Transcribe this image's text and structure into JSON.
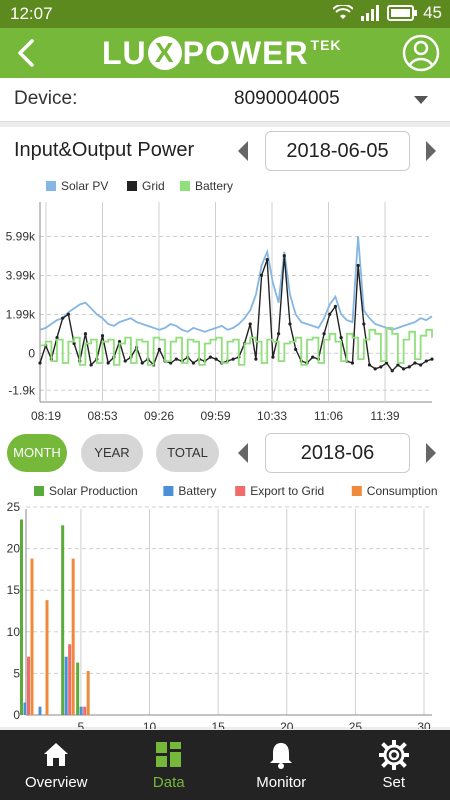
{
  "status": {
    "time": "12:07",
    "battery": "45"
  },
  "header": {
    "logo_left": "LU",
    "logo_x": "X",
    "logo_right": "POWER",
    "logo_sup": "TEK"
  },
  "device": {
    "label": "Device:",
    "value": "8090004005"
  },
  "io_section": {
    "title": "Input&Output Power",
    "date": "2018-06-05"
  },
  "energy_section": {
    "tabs": [
      {
        "label": "MONTH"
      },
      {
        "label": "YEAR"
      },
      {
        "label": "TOTAL"
      }
    ],
    "date": "2018-06"
  },
  "colors": {
    "brand": "#76b83a",
    "solar": "#86b6e3",
    "grid": "#222222",
    "battery": "#8fe07a",
    "export": "#f06b6b",
    "consumption": "#ef8a3c",
    "solar_prod": "#5aab3a",
    "battery_bar": "#4a90d9"
  },
  "nav": {
    "items": [
      {
        "label": "Overview",
        "icon": "home-icon"
      },
      {
        "label": "Data",
        "icon": "grid-icon"
      },
      {
        "label": "Monitor",
        "icon": "bell-icon"
      },
      {
        "label": "Set",
        "icon": "gear-icon"
      }
    ]
  },
  "chart_data": [
    {
      "type": "line",
      "legend": [
        "Solar PV",
        "Grid",
        "Battery"
      ],
      "y_ticks": [
        "5.99k",
        "3.99k",
        "1.99k",
        "0",
        "-1.9k"
      ],
      "y_tick_values": [
        5990,
        3990,
        1990,
        0,
        -1900
      ],
      "x_ticks": [
        "08:19",
        "08:53",
        "09:26",
        "09:59",
        "10:33",
        "11:06",
        "11:39"
      ],
      "ylim": [
        -2500,
        7500
      ],
      "series": [
        {
          "name": "Solar PV",
          "values": [
            1200,
            1300,
            1500,
            1700,
            1800,
            2100,
            2300,
            2500,
            2600,
            2300,
            2000,
            1800,
            1500,
            1400,
            1600,
            1700,
            1800,
            1600,
            1500,
            1400,
            1300,
            1200,
            1300,
            1500,
            1400,
            1200,
            1100,
            1300,
            1200,
            1100,
            1200,
            1300,
            1400,
            1200,
            1300,
            1500,
            1800,
            2200,
            3000,
            4500,
            5200,
            3600,
            2600,
            5200,
            3000,
            2000,
            1600,
            1500,
            1400,
            1300,
            1800,
            2500,
            2900,
            2000,
            1700,
            1600,
            6000,
            2200,
            1800,
            1500,
            1400,
            1300,
            1200,
            1300,
            1400,
            1500,
            1600,
            1800,
            1700,
            1900
          ]
        },
        {
          "name": "Grid",
          "values": [
            -500,
            400,
            -300,
            800,
            1800,
            2000,
            500,
            -400,
            1000,
            -600,
            -300,
            900,
            -500,
            -200,
            600,
            -400,
            -200,
            300,
            -500,
            -300,
            -600,
            200,
            -400,
            -500,
            -300,
            -400,
            -200,
            -500,
            -300,
            -400,
            -200,
            -300,
            -500,
            -400,
            -300,
            -200,
            500,
            1500,
            -300,
            4000,
            4800,
            -200,
            1000,
            5000,
            1500,
            200,
            -400,
            -500,
            -200,
            -300,
            1000,
            2000,
            2400,
            800,
            -400,
            -500,
            4500,
            1500,
            -600,
            -800,
            -700,
            -500,
            -900,
            -600,
            -800,
            -700,
            -500,
            -600,
            -400,
            -300
          ]
        },
        {
          "name": "Battery",
          "values": [
            400,
            600,
            -400,
            700,
            -500,
            600,
            800,
            -600,
            500,
            700,
            -500,
            600,
            700,
            -600,
            500,
            800,
            -500,
            700,
            600,
            -600,
            800,
            700,
            -400,
            600,
            800,
            -500,
            700,
            600,
            -600,
            500,
            700,
            800,
            -500,
            600,
            700,
            -600,
            500,
            800,
            600,
            -500,
            700,
            600,
            -400,
            500,
            600,
            800,
            -600,
            700,
            800,
            -500,
            700,
            1000,
            600,
            -400,
            1000,
            800,
            -300,
            700,
            1200,
            1000,
            -400,
            1300,
            1000,
            -500,
            700,
            1100,
            -300,
            900,
            1200,
            800
          ]
        }
      ]
    },
    {
      "type": "bar",
      "legend": [
        "Solar Production",
        "Battery",
        "Export to Grid",
        "Consumption"
      ],
      "y_ticks": [
        "25",
        "20",
        "15",
        "10",
        "5",
        "0"
      ],
      "x_ticks": [
        "5",
        "10",
        "15",
        "20",
        "25",
        "30"
      ],
      "ylim": [
        0,
        25
      ],
      "xlim": [
        1,
        30
      ],
      "days": [
        1,
        4
      ],
      "series": [
        {
          "name": "Solar Production",
          "values": [
            23.5,
            22.8
          ]
        },
        {
          "name": "Battery",
          "values": [
            1.5,
            7.0
          ]
        },
        {
          "name": "Export to Grid",
          "values": [
            7.0,
            8.5
          ]
        },
        {
          "name": "Consumption",
          "values": [
            18.8,
            18.8
          ]
        }
      ],
      "extra_small": [
        {
          "day": 1,
          "series": "Battery",
          "value": 1.0
        },
        {
          "day": 1,
          "series": "Consumption",
          "value": 13.8
        },
        {
          "day": 4,
          "series": "Solar Production",
          "value": 6.3
        },
        {
          "day": 4,
          "series": "Battery",
          "value": 1.0
        },
        {
          "day": 4,
          "series": "Export to Grid",
          "value": 1.0
        },
        {
          "day": 4,
          "series": "Consumption",
          "value": 5.3
        }
      ]
    }
  ]
}
